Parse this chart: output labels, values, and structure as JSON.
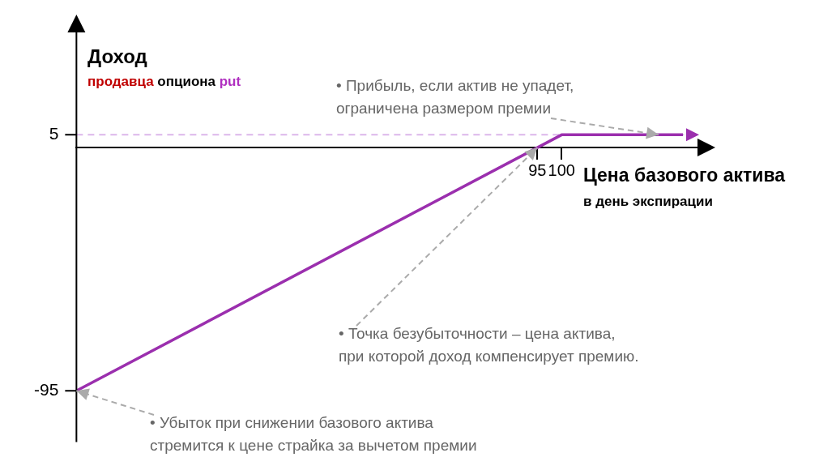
{
  "chart_data": {
    "type": "line",
    "ylabel": "Доход",
    "subtitle": "продавца опциона put",
    "xlabel": "Цена базового актива\nв день экспирации",
    "series": [
      {
        "color": "#9b2fae",
        "x": [
          0,
          100,
          125
        ],
        "values": [
          -95,
          5,
          5
        ]
      }
    ],
    "xlim": [
      0,
      128
    ],
    "xticks": [
      95,
      100
    ],
    "ylim": [
      -115,
      45
    ],
    "yticks": [
      -95,
      5
    ],
    "ref_lines": [
      {
        "axis": "y",
        "value": 5,
        "color": "#dcb6ea",
        "line_style": "dashed"
      }
    ],
    "annotations": [
      {
        "text": "• Прибыль, если актив не упадет,\nограничена размером премии",
        "x": 120,
        "y": 5
      },
      {
        "text": "• Точка безубыточности – цена актива,\nпри которой доход компенсирует премию.",
        "x": 95,
        "y": 0
      },
      {
        "text": "• Убыток при снижении базового актива\nстремится к цене страйка за вычетом премии",
        "x": 0,
        "y": -95
      }
    ],
    "grid": false,
    "legend": false,
    "marker": "none",
    "line_style": "solid"
  }
}
